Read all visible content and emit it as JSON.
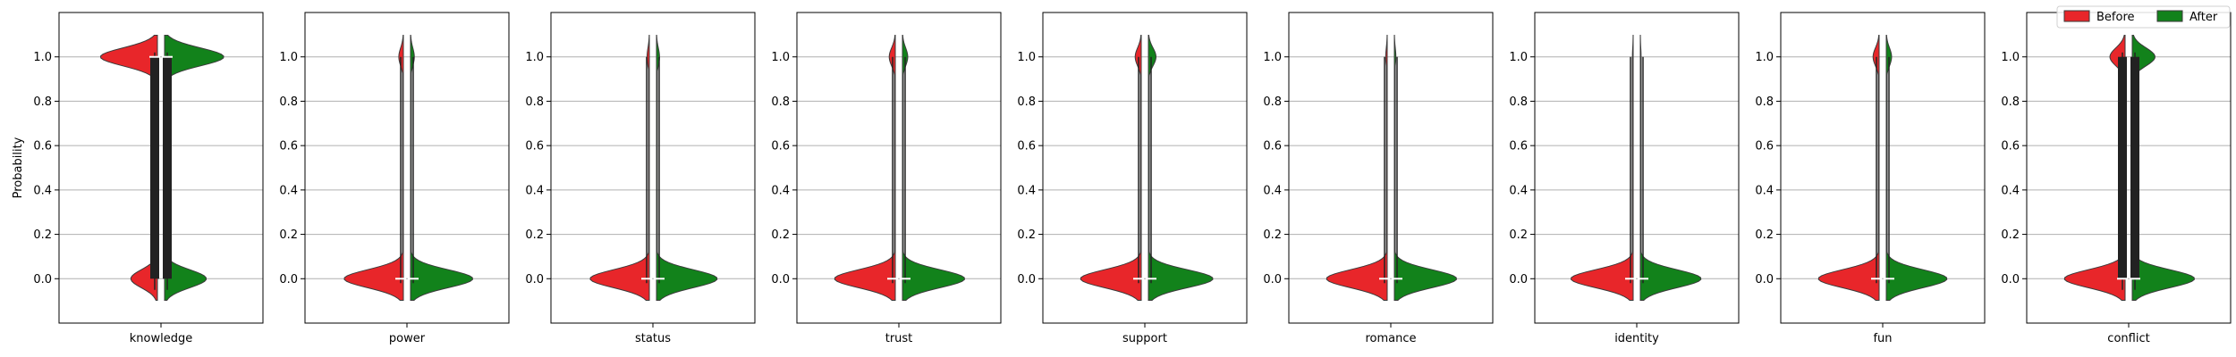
{
  "chart_data": {
    "type": "violin",
    "ylabel": "Probability",
    "ylim": [
      -0.2,
      1.2
    ],
    "yticks": [
      "0.0",
      "0.2",
      "0.4",
      "0.6",
      "0.8",
      "1.0"
    ],
    "grid": "y",
    "split": true,
    "legend": {
      "placement": "top-right",
      "entries": [
        {
          "name": "Before",
          "color": "#e8262a"
        },
        {
          "name": "After",
          "color": "#12821b"
        }
      ]
    },
    "panels": [
      {
        "category": "knowledge",
        "before": {
          "p_at_1": 0.97,
          "mass_at_0": 0.03,
          "mass_at_1": 0.97,
          "width_0": 0.35,
          "width_1": 0.75
        },
        "after": {
          "p_at_1": 0.94,
          "mass_at_0": 0.06,
          "mass_at_1": 0.94,
          "width_0": 0.55,
          "width_1": 0.78
        }
      },
      {
        "category": "power",
        "before": {
          "p_at_1": 0.01,
          "mass_at_0": 0.99,
          "mass_at_1": 0.01,
          "width_0": 0.78,
          "width_1": 0.06
        },
        "after": {
          "p_at_1": 0.01,
          "mass_at_0": 0.99,
          "mass_at_1": 0.01,
          "width_0": 0.82,
          "width_1": 0.05
        }
      },
      {
        "category": "status",
        "before": {
          "p_at_1": 0.005,
          "mass_at_0": 0.995,
          "mass_at_1": 0.005,
          "width_0": 0.78,
          "width_1": 0.03
        },
        "after": {
          "p_at_1": 0.005,
          "mass_at_0": 0.995,
          "mass_at_1": 0.005,
          "width_0": 0.8,
          "width_1": 0.04
        }
      },
      {
        "category": "trust",
        "before": {
          "p_at_1": 0.01,
          "mass_at_0": 0.99,
          "mass_at_1": 0.01,
          "width_0": 0.8,
          "width_1": 0.08
        },
        "after": {
          "p_at_1": 0.01,
          "mass_at_0": 0.99,
          "mass_at_1": 0.01,
          "width_0": 0.82,
          "width_1": 0.07
        }
      },
      {
        "category": "support",
        "before": {
          "p_at_1": 0.02,
          "mass_at_0": 0.98,
          "mass_at_1": 0.02,
          "width_0": 0.8,
          "width_1": 0.08
        },
        "after": {
          "p_at_1": 0.02,
          "mass_at_0": 0.98,
          "mass_at_1": 0.02,
          "width_0": 0.85,
          "width_1": 0.1
        }
      },
      {
        "category": "romance",
        "before": {
          "p_at_1": 0.003,
          "mass_at_0": 0.997,
          "mass_at_1": 0.003,
          "width_0": 0.8,
          "width_1": 0.02
        },
        "after": {
          "p_at_1": 0.003,
          "mass_at_0": 0.997,
          "mass_at_1": 0.003,
          "width_0": 0.82,
          "width_1": 0.02
        }
      },
      {
        "category": "identity",
        "before": {
          "p_at_1": 0.001,
          "mass_at_0": 0.999,
          "mass_at_1": 0.001,
          "width_0": 0.82,
          "width_1": 0.01
        },
        "after": {
          "p_at_1": 0.001,
          "mass_at_0": 0.999,
          "mass_at_1": 0.001,
          "width_0": 0.8,
          "width_1": 0.01
        }
      },
      {
        "category": "fun",
        "before": {
          "p_at_1": 0.01,
          "mass_at_0": 0.99,
          "mass_at_1": 0.01,
          "width_0": 0.8,
          "width_1": 0.08
        },
        "after": {
          "p_at_1": 0.01,
          "mass_at_0": 0.99,
          "mass_at_1": 0.01,
          "width_0": 0.8,
          "width_1": 0.07
        }
      },
      {
        "category": "conflict",
        "before": {
          "p_at_1": 0.08,
          "mass_at_0": 0.92,
          "mass_at_1": 0.08,
          "width_0": 0.8,
          "width_1": 0.2
        },
        "after": {
          "p_at_1": 0.06,
          "mass_at_0": 0.94,
          "mass_at_1": 0.06,
          "width_0": 0.82,
          "width_1": 0.3
        }
      }
    ]
  }
}
